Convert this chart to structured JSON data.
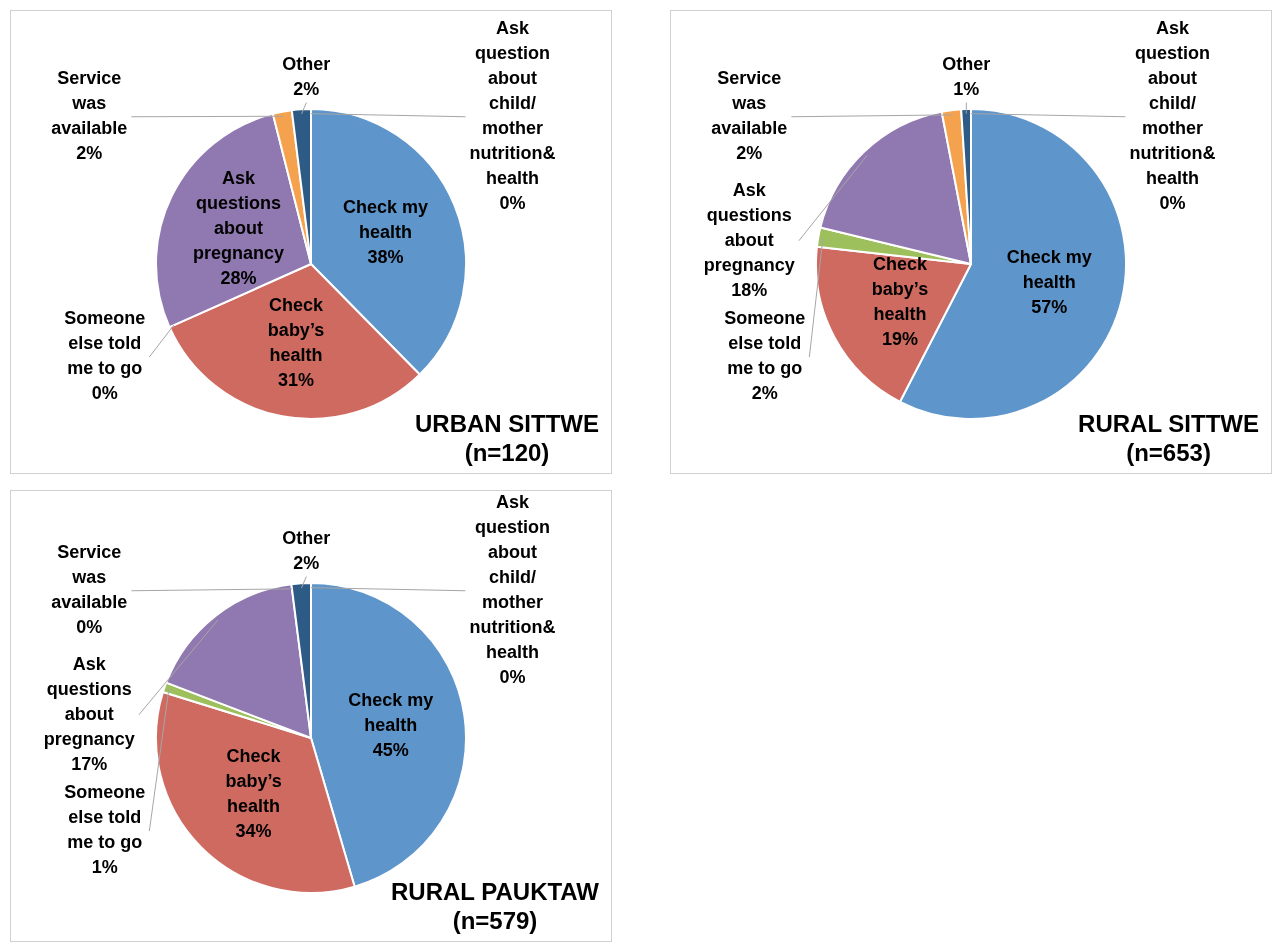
{
  "chart_data": [
    {
      "type": "pie",
      "title": "URBAN SITTWE",
      "subtitle": "(n=120)",
      "categories": [
        "Check my health",
        "Check baby’s health",
        "Someone else told me to go",
        "Ask questions about pregnancy",
        "Service was available",
        "Other",
        "Ask question about child/ mother nutrition& health"
      ],
      "values": [
        38,
        31,
        0,
        28,
        2,
        2,
        0
      ],
      "value_labels": [
        "38%",
        "31%",
        "0%",
        "28%",
        "2%",
        "2%",
        "0%"
      ],
      "colors": [
        "#5e95ca",
        "#cf6a61",
        "#9dbf5c",
        "#9079b0",
        "#f5a24e",
        "#2d5b86",
        "#7fb2dc"
      ]
    },
    {
      "type": "pie",
      "title": "RURAL SITTWE",
      "subtitle": "(n=653)",
      "categories": [
        "Check my health",
        "Check baby’s health",
        "Someone else told me to go",
        "Ask questions about pregnancy",
        "Service was available",
        "Other",
        "Ask question about child/ mother nutrition& health"
      ],
      "values": [
        57,
        19,
        2,
        18,
        2,
        1,
        0
      ],
      "value_labels": [
        "57%",
        "19%",
        "2%",
        "18%",
        "2%",
        "1%",
        "0%"
      ],
      "colors": [
        "#5e95ca",
        "#cf6a61",
        "#9dbf5c",
        "#9079b0",
        "#f5a24e",
        "#2d5b86",
        "#7fb2dc"
      ]
    },
    {
      "type": "pie",
      "title": "RURAL PAUKTAW",
      "subtitle": "(n=579)",
      "categories": [
        "Check my health",
        "Check baby’s health",
        "Someone else told me to go",
        "Ask questions about pregnancy",
        "Service was available",
        "Other",
        "Ask question about child/ mother nutrition& health"
      ],
      "values": [
        45,
        34,
        1,
        17,
        0,
        2,
        0
      ],
      "value_labels": [
        "45%",
        "34%",
        "1%",
        "17%",
        "0%",
        "2%",
        "0%"
      ],
      "colors": [
        "#5e95ca",
        "#cf6a61",
        "#9dbf5c",
        "#9079b0",
        "#f5a24e",
        "#2d5b86",
        "#7fb2dc"
      ]
    }
  ]
}
